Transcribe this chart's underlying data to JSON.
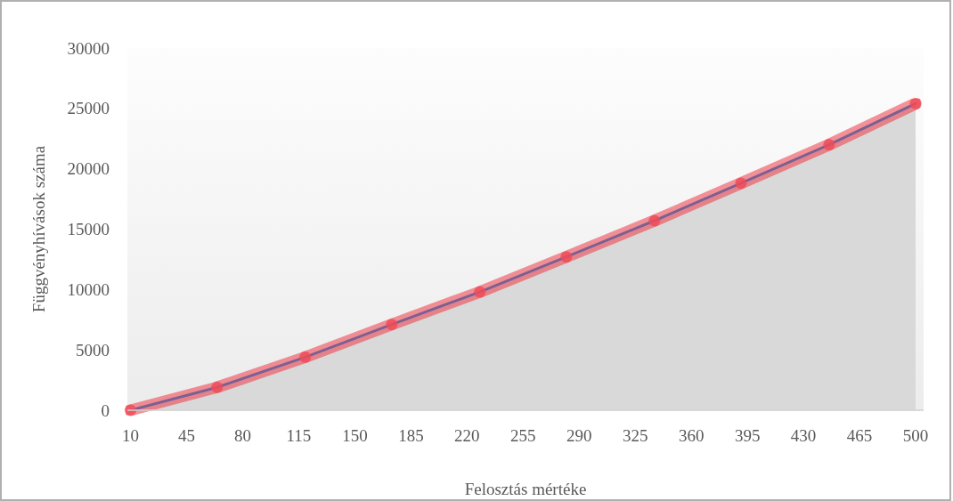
{
  "chart_data": {
    "type": "area",
    "xlabel": "Felosztás mértéke",
    "ylabel": "Függvényhívások száma",
    "x": [
      10,
      64,
      119,
      173,
      228,
      282,
      337,
      391,
      446,
      500
    ],
    "series": [
      {
        "color": "#d9d9d9",
        "marker": "circle",
        "values": [
          0,
          1900,
          4400,
          7100,
          9800,
          12700,
          15700,
          18800,
          22000,
          25400
        ]
      }
    ],
    "xlim": [
      8,
      505
    ],
    "xticks": [
      10,
      45,
      80,
      115,
      150,
      185,
      220,
      255,
      290,
      325,
      360,
      395,
      430,
      465,
      500
    ],
    "ylim": [
      0,
      30000
    ],
    "yticks": [
      0,
      5000,
      10000,
      15000,
      20000,
      25000,
      30000
    ],
    "grid": false
  }
}
